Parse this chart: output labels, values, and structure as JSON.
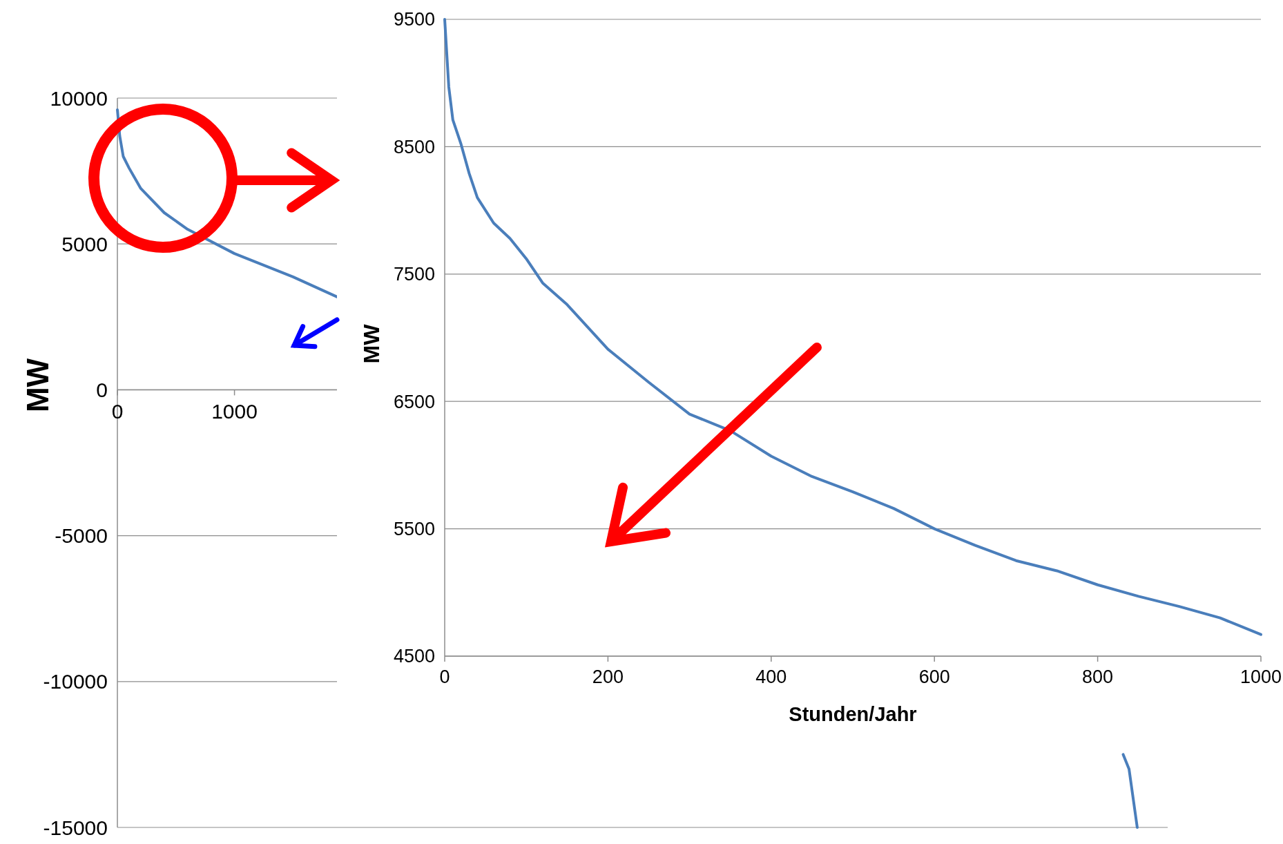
{
  "chart_data": [
    {
      "type": "line",
      "ylabel": "MW",
      "xlim": [
        0,
        8970
      ],
      "ylim": [
        -15000,
        10000
      ],
      "xticks": [
        0,
        1000
      ],
      "yticks": [
        -15000,
        -10000,
        -5000,
        0,
        5000,
        10000
      ],
      "grid": "y",
      "series": [
        {
          "color": "#4a7ebb",
          "x": [
            0,
            20,
            50,
            100,
            200,
            400,
            600,
            1000,
            1500,
            1880,
            3000,
            8590,
            8640,
            8710
          ],
          "values": [
            9600,
            8700,
            8000,
            7600,
            6900,
            6070,
            5500,
            4670,
            3870,
            3180,
            null,
            -12500,
            -13000,
            -15000
          ]
        }
      ]
    },
    {
      "type": "line",
      "xlabel": "Stunden/Jahr",
      "ylabel": "MW",
      "xlim": [
        0,
        1000
      ],
      "ylim": [
        4500,
        9500
      ],
      "xticks": [
        0,
        200,
        400,
        600,
        800,
        1000
      ],
      "yticks": [
        4500,
        5500,
        6500,
        7500,
        8500,
        9500
      ],
      "grid": "y",
      "series": [
        {
          "color": "#4a7ebb",
          "x": [
            0,
            5,
            10,
            20,
            30,
            40,
            60,
            80,
            100,
            120,
            150,
            200,
            250,
            300,
            350,
            400,
            450,
            500,
            550,
            600,
            650,
            700,
            750,
            800,
            850,
            900,
            950,
            1000
          ],
          "values": [
            9500,
            8970,
            8710,
            8520,
            8290,
            8100,
            7900,
            7780,
            7620,
            7430,
            7260,
            6910,
            6650,
            6400,
            6270,
            6070,
            5910,
            5790,
            5660,
            5500,
            5370,
            5250,
            5170,
            5060,
            4970,
            4890,
            4800,
            4670
          ]
        }
      ]
    }
  ]
}
